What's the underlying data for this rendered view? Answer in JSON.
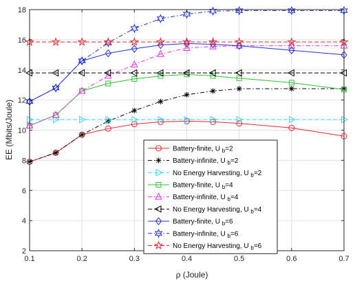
{
  "chart_data": {
    "type": "line",
    "title": "",
    "xlabel": "ρ (Joule)",
    "ylabel": "EE (Mbits/Joule)",
    "xlim": [
      0.1,
      0.7
    ],
    "ylim": [
      2,
      18
    ],
    "x_ticks": [
      0.1,
      0.2,
      0.3,
      0.4,
      0.5,
      0.6,
      0.7
    ],
    "x_tick_labels": [
      "0.1",
      "0.2",
      "0.3",
      "0.4",
      "0.5",
      "0.6",
      "0.7"
    ],
    "y_ticks": [
      2,
      4,
      6,
      8,
      10,
      12,
      14,
      16,
      18
    ],
    "y_tick_labels": [
      "2",
      "4",
      "6",
      "8",
      "10",
      "12",
      "14",
      "16",
      "18"
    ],
    "grid": true,
    "legend_position": "bottom-center",
    "x": [
      0.1,
      0.15,
      0.2,
      0.25,
      0.3,
      0.35,
      0.4,
      0.45,
      0.5,
      0.6,
      0.7
    ],
    "series": [
      {
        "name": "Battery-finite, U_b=2",
        "legend_main": "Battery-finite, U",
        "legend_sub": "b",
        "legend_tail": "=2",
        "color": "#e8262c",
        "dash": "solid",
        "marker": "circle",
        "values": [
          7.9,
          8.5,
          9.7,
          10.1,
          10.4,
          10.55,
          10.6,
          10.55,
          10.45,
          10.15,
          9.6
        ]
      },
      {
        "name": "Battery-infinite, U_b=2",
        "legend_main": "Battery-infinite, U",
        "legend_sub": "b",
        "legend_tail": "=2",
        "color": "#000000",
        "dash": "dashdot",
        "marker": "asterisk",
        "values": [
          7.9,
          8.5,
          9.7,
          10.6,
          11.3,
          11.9,
          12.35,
          12.6,
          12.75,
          12.75,
          12.75
        ]
      },
      {
        "name": "No Energy Harvesting, U_b=2",
        "legend_main": "No Energy Harvesting, U",
        "legend_sub": "b",
        "legend_tail": "=2",
        "color": "#37d5f0",
        "dash": "dashed",
        "marker": "triangle-right",
        "values": [
          10.7,
          10.7,
          10.7,
          10.7,
          10.7,
          10.7,
          10.7,
          10.7,
          10.7,
          10.7,
          10.7
        ]
      },
      {
        "name": "Battery-finite, U_b=4",
        "legend_main": "Battery-finite, U",
        "legend_sub": "b",
        "legend_tail": "=4",
        "color": "#2fc02f",
        "dash": "solid",
        "marker": "square",
        "values": [
          10.3,
          11.0,
          12.6,
          13.1,
          13.4,
          13.6,
          13.7,
          13.6,
          13.45,
          13.15,
          12.7
        ]
      },
      {
        "name": "Battery-infinite, U_b=4",
        "legend_main": "Battery-infinite, U",
        "legend_sub": "b",
        "legend_tail": "=4",
        "color": "#e22ee2",
        "dash": "dashdot",
        "marker": "triangle-up",
        "values": [
          10.3,
          11.0,
          12.6,
          13.6,
          14.35,
          15.05,
          15.45,
          15.55,
          15.6,
          15.6,
          15.6
        ]
      },
      {
        "name": "No Energy Harvesting, U_b=4",
        "legend_main": "No Energy Harvesting, U",
        "legend_sub": "b",
        "legend_tail": "=4",
        "color": "#000000",
        "dash": "dashed",
        "marker": "triangle-left",
        "values": [
          13.8,
          13.8,
          13.8,
          13.8,
          13.8,
          13.8,
          13.8,
          13.8,
          13.8,
          13.8,
          13.8
        ]
      },
      {
        "name": "Battery-finite, U_b=6",
        "legend_main": "Battery-finite, U",
        "legend_sub": "b",
        "legend_tail": "=6",
        "color": "#1f2fd6",
        "dash": "solid",
        "marker": "diamond",
        "values": [
          11.9,
          12.8,
          14.6,
          15.1,
          15.4,
          15.65,
          15.75,
          15.7,
          15.6,
          15.3,
          15.0
        ]
      },
      {
        "name": "Battery-infinite, U_b=6",
        "legend_main": "Battery-infinite, U",
        "legend_sub": "b",
        "legend_tail": "=6",
        "color": "#1f2fd6",
        "dash": "dashdot",
        "marker": "hexagram",
        "values": [
          11.9,
          12.8,
          14.6,
          15.8,
          16.75,
          17.4,
          17.7,
          17.9,
          17.93,
          17.93,
          17.93
        ]
      },
      {
        "name": "No Energy Harvesting, U_b=6",
        "legend_main": "No Energy Harvesting, U",
        "legend_sub": "b",
        "legend_tail": "=6",
        "color": "#e8262c",
        "dash": "dashed",
        "marker": "pentagram",
        "values": [
          15.85,
          15.85,
          15.85,
          15.85,
          15.85,
          15.85,
          15.85,
          15.85,
          15.85,
          15.85,
          15.85
        ]
      }
    ]
  }
}
